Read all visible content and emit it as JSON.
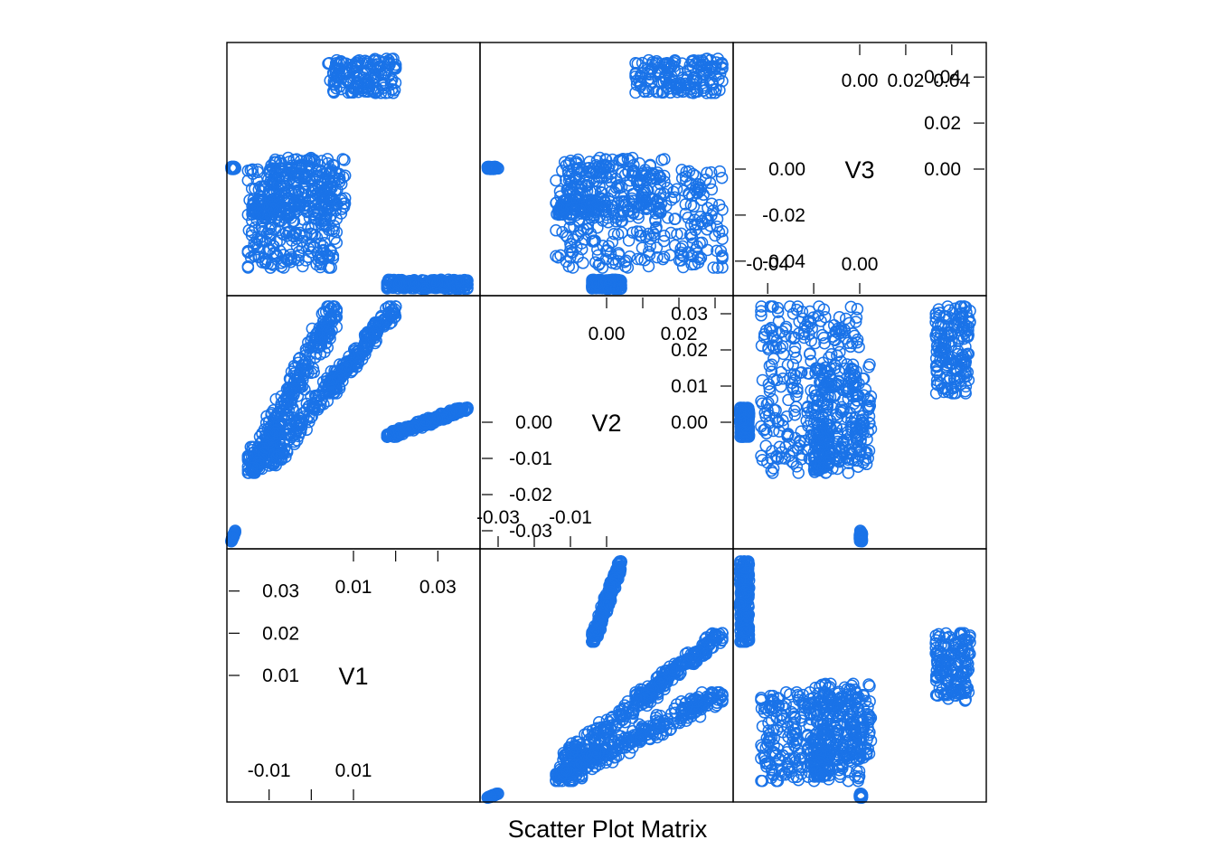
{
  "caption": "Scatter Plot Matrix",
  "colors": {
    "point": "#1a73e8",
    "frame": "#000000"
  },
  "chart_data": {
    "type": "scatter",
    "variables": [
      "V1",
      "V2",
      "V3"
    ],
    "layout": "lattice-splom (V1 bottom-left diagonal, V3 top-right diagonal)",
    "axes": {
      "V1": {
        "range": [
          -0.02,
          0.04
        ],
        "lower_ticks": [
          -0.01,
          0.0,
          0.01
        ],
        "lower_labels": [
          "-0.01",
          "0.01"
        ],
        "upper_ticks": [
          0.01,
          0.02,
          0.03
        ],
        "upper_labels": [
          "0.01",
          "0.03"
        ],
        "right_ticks": [
          0.01,
          0.02,
          0.03
        ],
        "right_labels": [
          "0.01",
          "0.02",
          "0.03"
        ]
      },
      "V2": {
        "range": [
          -0.035,
          0.035
        ],
        "lower_ticks": [
          -0.03,
          -0.02,
          -0.01,
          0.0
        ],
        "lower_labels": [
          "-0.03",
          "-0.01"
        ],
        "upper_ticks": [
          0.0,
          0.01,
          0.02,
          0.03
        ],
        "upper_labels": [
          "0.00",
          "0.02"
        ],
        "left_ticks": [
          -0.03,
          -0.02,
          -0.01,
          0.0
        ],
        "left_labels": [
          "-0.03",
          "-0.02",
          "-0.01",
          "0.00"
        ],
        "right_ticks": [
          0.0,
          0.01,
          0.02,
          0.03
        ],
        "right_labels": [
          "0.00",
          "0.01",
          "0.02",
          "0.03"
        ]
      },
      "V3": {
        "range": [
          -0.055,
          0.055
        ],
        "lower_ticks": [
          -0.04,
          -0.02,
          0.0
        ],
        "lower_labels": [
          "-0.04",
          "0.00"
        ],
        "upper_ticks": [
          0.0,
          0.02,
          0.04
        ],
        "upper_labels": [
          "0.00",
          "0.02",
          "0.04"
        ],
        "left_ticks": [
          -0.04,
          -0.02,
          0.0
        ],
        "left_labels": [
          "-0.04",
          "-0.02",
          "0.00"
        ],
        "right_ticks": [
          0.0,
          0.02,
          0.04
        ],
        "right_labels": [
          "0.00",
          "0.02",
          "0.04"
        ]
      }
    },
    "clusters": [
      {
        "v1": [
          -0.019,
          -0.018
        ],
        "v2": [
          -0.033,
          -0.03
        ],
        "v3": [
          0.0,
          0.001
        ],
        "n": 60
      },
      {
        "v1": [
          0.018,
          0.037
        ],
        "v2": [
          -0.004,
          0.004
        ],
        "v3": [
          -0.052,
          -0.048
        ],
        "n": 240
      },
      {
        "v1": [
          0.004,
          0.02
        ],
        "v2": [
          0.008,
          0.032
        ],
        "v3": [
          0.033,
          0.048
        ],
        "n": 170
      },
      {
        "v1": [
          -0.015,
          0.006
        ],
        "v2": [
          -0.014,
          0.032
        ],
        "v3": [
          -0.043,
          0.0
        ],
        "n": 320
      },
      {
        "v1": [
          -0.01,
          0.008
        ],
        "v2": [
          -0.012,
          0.016
        ],
        "v3": [
          -0.02,
          0.005
        ],
        "n": 160
      },
      {
        "v1": [
          -0.014,
          -0.007
        ],
        "v2": [
          -0.014,
          0.0
        ],
        "v3": [
          -0.02,
          -0.013
        ],
        "n": 70
      }
    ]
  }
}
